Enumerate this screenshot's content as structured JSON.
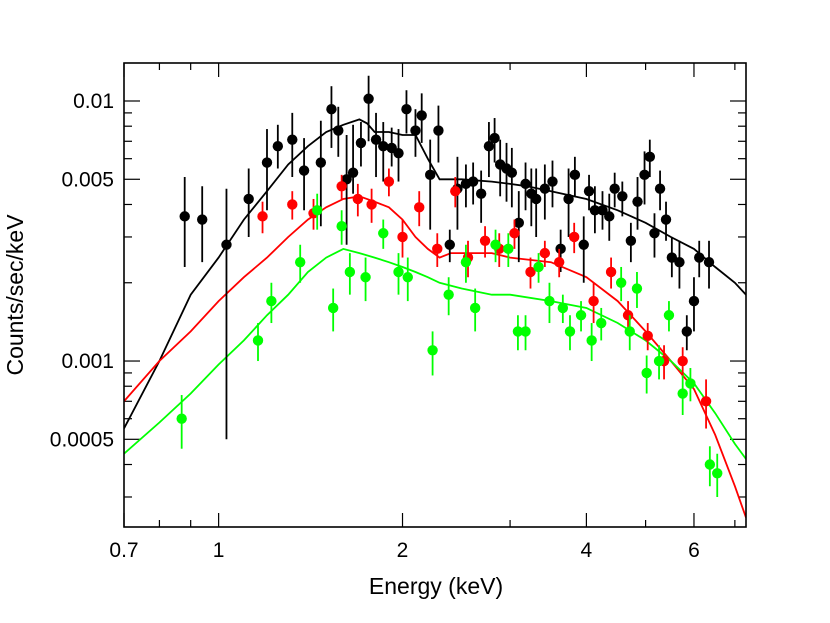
{
  "chart_data": {
    "type": "scatter",
    "title": "",
    "xlabel": "Energy (keV)",
    "ylabel": "Counts/sec/keV",
    "xscale": "log",
    "yscale": "log",
    "xlim": [
      0.7,
      7.3
    ],
    "ylim": [
      0.00023,
      0.014
    ],
    "xticks": [
      {
        "value": 0.7,
        "label": "0.7"
      },
      {
        "value": 1,
        "label": "1"
      },
      {
        "value": 2,
        "label": "2"
      },
      {
        "value": 4,
        "label": "4"
      },
      {
        "value": 6,
        "label": "6"
      }
    ],
    "yticks": [
      {
        "value": 0.0005,
        "label": "0.0005"
      },
      {
        "value": 0.001,
        "label": "0.001"
      },
      {
        "value": 0.005,
        "label": "0.005"
      },
      {
        "value": 0.01,
        "label": "0.01"
      }
    ],
    "series": [
      {
        "name": "black",
        "color": "#000000",
        "points": [
          [
            0.88,
            0.0036,
            0.0023,
            0.0051
          ],
          [
            0.94,
            0.0035,
            0.0024,
            0.0047
          ],
          [
            1.03,
            0.0028,
            0.0005,
            0.0046
          ],
          [
            1.12,
            0.0042,
            0.003,
            0.0055
          ],
          [
            1.2,
            0.0058,
            0.0038,
            0.0078
          ],
          [
            1.25,
            0.0067,
            0.0055,
            0.0081
          ],
          [
            1.32,
            0.0071,
            0.0051,
            0.009
          ],
          [
            1.38,
            0.0054,
            0.0038,
            0.0072
          ],
          [
            1.47,
            0.0058,
            0.0033,
            0.0084
          ],
          [
            1.53,
            0.0093,
            0.0066,
            0.0114
          ],
          [
            1.57,
            0.0077,
            0.0061,
            0.0095
          ],
          [
            1.62,
            0.005,
            0.0028,
            0.0074
          ],
          [
            1.66,
            0.0053,
            0.0044,
            0.0081
          ],
          [
            1.71,
            0.0069,
            0.0056,
            0.0083
          ],
          [
            1.76,
            0.0102,
            0.007,
            0.0125
          ],
          [
            1.81,
            0.0071,
            0.0051,
            0.009
          ],
          [
            1.86,
            0.0067,
            0.0049,
            0.0083
          ],
          [
            1.92,
            0.0066,
            0.0056,
            0.0079
          ],
          [
            1.97,
            0.0063,
            0.0049,
            0.0078
          ],
          [
            2.03,
            0.0093,
            0.0075,
            0.011
          ],
          [
            2.1,
            0.0077,
            0.0061,
            0.0093
          ],
          [
            2.15,
            0.0088,
            0.0069,
            0.0107
          ],
          [
            2.22,
            0.0052,
            0.0032,
            0.0071
          ],
          [
            2.29,
            0.0077,
            0.0058,
            0.0096
          ],
          [
            2.39,
            0.0028,
            0.0024,
            0.0032
          ],
          [
            2.46,
            0.0046,
            0.0032,
            0.0061
          ],
          [
            2.54,
            0.0048,
            0.0039,
            0.0057
          ],
          [
            2.61,
            0.0049,
            0.004,
            0.0058
          ],
          [
            2.69,
            0.0044,
            0.0034,
            0.0054
          ],
          [
            2.77,
            0.0067,
            0.0051,
            0.0083
          ],
          [
            2.83,
            0.0072,
            0.0058,
            0.0086
          ],
          [
            2.89,
            0.0057,
            0.0043,
            0.0071
          ],
          [
            2.96,
            0.0055,
            0.0041,
            0.0069
          ],
          [
            3.02,
            0.0053,
            0.0039,
            0.0066
          ],
          [
            3.1,
            0.0034,
            0.0024,
            0.0045
          ],
          [
            3.18,
            0.0048,
            0.0038,
            0.0058
          ],
          [
            3.25,
            0.0044,
            0.0033,
            0.0055
          ],
          [
            3.31,
            0.0042,
            0.003,
            0.0055
          ],
          [
            3.42,
            0.0046,
            0.0035,
            0.0057
          ],
          [
            3.52,
            0.0049,
            0.0039,
            0.0059
          ],
          [
            3.63,
            0.0027,
            0.0022,
            0.0032
          ],
          [
            3.74,
            0.0042,
            0.003,
            0.0055
          ],
          [
            3.83,
            0.0052,
            0.0043,
            0.0061
          ],
          [
            3.96,
            0.0028,
            0.002,
            0.0036
          ],
          [
            4.04,
            0.0045,
            0.0038,
            0.0052
          ],
          [
            4.13,
            0.0038,
            0.0031,
            0.0047
          ],
          [
            4.25,
            0.0038,
            0.0032,
            0.0045
          ],
          [
            4.36,
            0.0036,
            0.0029,
            0.0044
          ],
          [
            4.45,
            0.0046,
            0.0039,
            0.0053
          ],
          [
            4.58,
            0.0043,
            0.0036,
            0.0049
          ],
          [
            4.73,
            0.0029,
            0.0024,
            0.0034
          ],
          [
            4.85,
            0.0041,
            0.0032,
            0.0051
          ],
          [
            4.98,
            0.0052,
            0.004,
            0.0064
          ],
          [
            5.08,
            0.0061,
            0.0051,
            0.0071
          ],
          [
            5.17,
            0.0031,
            0.0025,
            0.0037
          ],
          [
            5.28,
            0.0046,
            0.0038,
            0.0054
          ],
          [
            5.4,
            0.0035,
            0.0029,
            0.0041
          ],
          [
            5.52,
            0.0025,
            0.0021,
            0.003
          ],
          [
            5.68,
            0.0024,
            0.0019,
            0.0029
          ],
          [
            5.84,
            0.0013,
            0.0011,
            0.0015
          ],
          [
            6.0,
            0.0017,
            0.0013,
            0.0021
          ],
          [
            6.12,
            0.0025,
            0.0021,
            0.0029
          ],
          [
            6.35,
            0.0024,
            0.0019,
            0.0029
          ]
        ],
        "model": [
          [
            0.7,
            0.00055
          ],
          [
            0.8,
            0.001
          ],
          [
            0.9,
            0.0018
          ],
          [
            1.0,
            0.0025
          ],
          [
            1.1,
            0.0035
          ],
          [
            1.2,
            0.0045
          ],
          [
            1.3,
            0.0057
          ],
          [
            1.4,
            0.0067
          ],
          [
            1.5,
            0.0076
          ],
          [
            1.6,
            0.0081
          ],
          [
            1.7,
            0.0085
          ],
          [
            1.75,
            0.0082
          ],
          [
            1.8,
            0.0076
          ],
          [
            1.9,
            0.0076
          ],
          [
            2.0,
            0.0074
          ],
          [
            2.1,
            0.0074
          ],
          [
            2.2,
            0.006
          ],
          [
            2.3,
            0.005
          ],
          [
            2.5,
            0.005
          ],
          [
            2.8,
            0.0049
          ],
          [
            3.0,
            0.0048
          ],
          [
            3.2,
            0.0047
          ],
          [
            3.5,
            0.0045
          ],
          [
            4.0,
            0.0042
          ],
          [
            4.5,
            0.0038
          ],
          [
            5.0,
            0.0034
          ],
          [
            5.5,
            0.003
          ],
          [
            6.0,
            0.0027
          ],
          [
            6.5,
            0.0023
          ],
          [
            7.0,
            0.002
          ],
          [
            7.3,
            0.0018
          ]
        ]
      },
      {
        "name": "red",
        "color": "#ff0000",
        "points": [
          [
            1.18,
            0.0036,
            0.0031,
            0.0041
          ],
          [
            1.32,
            0.004,
            0.0035,
            0.0045
          ],
          [
            1.43,
            0.0037,
            0.0032,
            0.0042
          ],
          [
            1.59,
            0.0047,
            0.0042,
            0.0052
          ],
          [
            1.69,
            0.0042,
            0.0036,
            0.0048
          ],
          [
            1.78,
            0.004,
            0.0034,
            0.0046
          ],
          [
            1.9,
            0.0049,
            0.0043,
            0.0055
          ],
          [
            2.0,
            0.003,
            0.0025,
            0.0035
          ],
          [
            2.13,
            0.0039,
            0.0033,
            0.0045
          ],
          [
            2.28,
            0.0027,
            0.0023,
            0.0031
          ],
          [
            2.44,
            0.0045,
            0.0039,
            0.0051
          ],
          [
            2.56,
            0.0025,
            0.0021,
            0.0029
          ],
          [
            2.73,
            0.0029,
            0.0025,
            0.0033
          ],
          [
            2.88,
            0.0027,
            0.0023,
            0.0031
          ],
          [
            3.05,
            0.0031,
            0.0027,
            0.0035
          ],
          [
            3.24,
            0.0022,
            0.0019,
            0.0025
          ],
          [
            3.42,
            0.0026,
            0.0023,
            0.0029
          ],
          [
            3.61,
            0.0024,
            0.0021,
            0.0027
          ],
          [
            3.82,
            0.003,
            0.0026,
            0.0034
          ],
          [
            4.11,
            0.0017,
            0.0014,
            0.002
          ],
          [
            4.39,
            0.0022,
            0.0019,
            0.0025
          ],
          [
            4.68,
            0.0015,
            0.0013,
            0.0017
          ],
          [
            5.04,
            0.00125,
            0.0011,
            0.0014
          ],
          [
            5.36,
            0.001,
            0.00085,
            0.00115
          ],
          [
            5.75,
            0.001,
            0.00087,
            0.00113
          ],
          [
            6.28,
            0.0007,
            0.00055,
            0.00085
          ]
        ],
        "model": [
          [
            0.7,
            0.0007
          ],
          [
            0.8,
            0.001
          ],
          [
            0.9,
            0.0013
          ],
          [
            1.0,
            0.0017
          ],
          [
            1.1,
            0.0021
          ],
          [
            1.2,
            0.0025
          ],
          [
            1.3,
            0.003
          ],
          [
            1.4,
            0.0035
          ],
          [
            1.5,
            0.0039
          ],
          [
            1.6,
            0.0042
          ],
          [
            1.7,
            0.0043
          ],
          [
            1.8,
            0.0041
          ],
          [
            1.9,
            0.0039
          ],
          [
            2.0,
            0.0035
          ],
          [
            2.1,
            0.003
          ],
          [
            2.2,
            0.0027
          ],
          [
            2.3,
            0.0025
          ],
          [
            2.4,
            0.0026
          ],
          [
            2.6,
            0.0026
          ],
          [
            2.8,
            0.0026
          ],
          [
            3.0,
            0.0025
          ],
          [
            3.5,
            0.0024
          ],
          [
            4.0,
            0.0021
          ],
          [
            4.5,
            0.0017
          ],
          [
            5.0,
            0.0013
          ],
          [
            5.5,
            0.001
          ],
          [
            6.0,
            0.00078
          ],
          [
            6.5,
            0.00052
          ],
          [
            7.0,
            0.00033
          ],
          [
            7.3,
            0.00025
          ]
        ]
      },
      {
        "name": "green",
        "color": "#00ff00",
        "points": [
          [
            0.87,
            0.0006,
            0.00046,
            0.00074
          ],
          [
            1.16,
            0.0012,
            0.001,
            0.0014
          ],
          [
            1.22,
            0.0017,
            0.0014,
            0.002
          ],
          [
            1.36,
            0.0024,
            0.002,
            0.0028
          ],
          [
            1.45,
            0.0038,
            0.0032,
            0.0044
          ],
          [
            1.54,
            0.0016,
            0.0013,
            0.0019
          ],
          [
            1.59,
            0.0033,
            0.0028,
            0.0038
          ],
          [
            1.64,
            0.0022,
            0.0018,
            0.0026
          ],
          [
            1.74,
            0.0021,
            0.0017,
            0.0025
          ],
          [
            1.86,
            0.0031,
            0.0027,
            0.0035
          ],
          [
            1.97,
            0.0022,
            0.0018,
            0.0026
          ],
          [
            2.04,
            0.0021,
            0.0017,
            0.0025
          ],
          [
            2.24,
            0.0011,
            0.00088,
            0.0013
          ],
          [
            2.38,
            0.0018,
            0.0015,
            0.0021
          ],
          [
            2.54,
            0.0024,
            0.002,
            0.0028
          ],
          [
            2.63,
            0.0016,
            0.0013,
            0.0019
          ],
          [
            2.84,
            0.0028,
            0.0024,
            0.0032
          ],
          [
            2.98,
            0.0027,
            0.0023,
            0.0031
          ],
          [
            3.09,
            0.0013,
            0.0011,
            0.0015
          ],
          [
            3.18,
            0.0013,
            0.0011,
            0.0015
          ],
          [
            3.34,
            0.0023,
            0.002,
            0.0026
          ],
          [
            3.48,
            0.0017,
            0.0014,
            0.002
          ],
          [
            3.66,
            0.0016,
            0.0014,
            0.0018
          ],
          [
            3.76,
            0.0013,
            0.0011,
            0.0015
          ],
          [
            3.92,
            0.0015,
            0.0013,
            0.0017
          ],
          [
            4.08,
            0.0012,
            0.001,
            0.0014
          ],
          [
            4.23,
            0.0014,
            0.0012,
            0.0016
          ],
          [
            4.56,
            0.002,
            0.0017,
            0.0023
          ],
          [
            4.71,
            0.0013,
            0.0011,
            0.0015
          ],
          [
            4.84,
            0.0019,
            0.0016,
            0.0022
          ],
          [
            5.02,
            0.0009,
            0.00075,
            0.00105
          ],
          [
            5.26,
            0.001,
            0.00085,
            0.00115
          ],
          [
            5.46,
            0.0015,
            0.0013,
            0.0017
          ],
          [
            5.75,
            0.00075,
            0.00062,
            0.00088
          ],
          [
            5.92,
            0.00082,
            0.0007,
            0.00094
          ],
          [
            6.37,
            0.0004,
            0.00033,
            0.00047
          ],
          [
            6.55,
            0.00037,
            0.0003,
            0.00044
          ]
        ],
        "model": [
          [
            0.7,
            0.00044
          ],
          [
            0.8,
            0.00058
          ],
          [
            0.9,
            0.00075
          ],
          [
            1.0,
            0.00097
          ],
          [
            1.1,
            0.0012
          ],
          [
            1.2,
            0.0015
          ],
          [
            1.3,
            0.0018
          ],
          [
            1.4,
            0.0022
          ],
          [
            1.5,
            0.0025
          ],
          [
            1.6,
            0.0027
          ],
          [
            1.7,
            0.0026
          ],
          [
            1.8,
            0.0025
          ],
          [
            1.9,
            0.0024
          ],
          [
            2.0,
            0.0023
          ],
          [
            2.1,
            0.0022
          ],
          [
            2.2,
            0.0021
          ],
          [
            2.3,
            0.002
          ],
          [
            2.5,
            0.0019
          ],
          [
            2.8,
            0.0018
          ],
          [
            3.0,
            0.0018
          ],
          [
            3.5,
            0.0017
          ],
          [
            4.0,
            0.0016
          ],
          [
            4.5,
            0.0014
          ],
          [
            5.0,
            0.0012
          ],
          [
            5.5,
            0.001
          ],
          [
            6.0,
            0.00082
          ],
          [
            6.5,
            0.00063
          ],
          [
            7.0,
            0.00048
          ],
          [
            7.3,
            0.00042
          ]
        ]
      }
    ]
  }
}
